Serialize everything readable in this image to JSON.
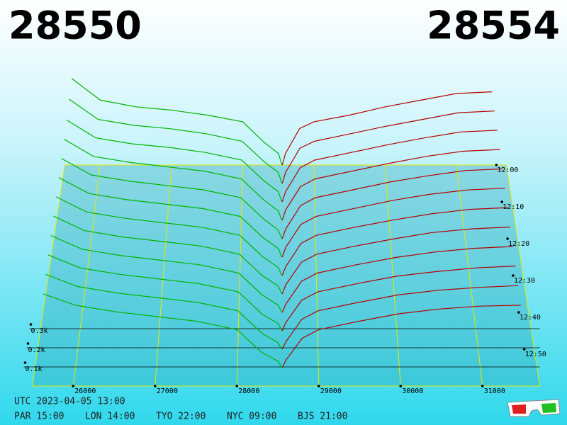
{
  "chart_data": {
    "type": "depth3d",
    "bid_price": 28550,
    "ask_price": 28554,
    "bid_color": "#00b400",
    "ask_color": "#b40000",
    "xlim": [
      25500,
      31700
    ],
    "xticks": [
      26000,
      27000,
      28000,
      29000,
      30000,
      31000
    ],
    "depth_ticks": [
      {
        "value": 100,
        "label": "0.1k"
      },
      {
        "value": 200,
        "label": "0.2k"
      },
      {
        "value": 300,
        "label": "0.3k"
      }
    ],
    "time_ticks": [
      "12:00",
      "12:10",
      "12:20",
      "12:30",
      "12:40",
      "12:50"
    ],
    "time_range": [
      "12:00",
      "13:00"
    ],
    "bid_prices": [
      25600,
      26000,
      26500,
      27000,
      27500,
      28000,
      28300,
      28500,
      28550
    ],
    "ask_prices": [
      28554,
      28600,
      28800,
      29000,
      29500,
      30000,
      30500,
      31000,
      31500
    ],
    "layers": [
      {
        "time": "12:00",
        "bids": [
          520,
          390,
          350,
          330,
          300,
          260,
          136,
          70,
          0
        ],
        "asks": [
          0,
          70,
          220,
          260,
          300,
          350,
          390,
          430,
          440
        ]
      },
      {
        "time": "12:05",
        "bids": [
          500,
          380,
          345,
          325,
          295,
          250,
          130,
          65,
          0
        ],
        "asks": [
          0,
          65,
          210,
          250,
          295,
          340,
          380,
          420,
          430
        ]
      },
      {
        "time": "12:10",
        "bids": [
          480,
          375,
          340,
          320,
          290,
          245,
          125,
          60,
          0
        ],
        "asks": [
          0,
          60,
          200,
          245,
          290,
          335,
          375,
          410,
          420
        ]
      },
      {
        "time": "12:15",
        "bids": [
          470,
          370,
          335,
          310,
          285,
          240,
          120,
          55,
          0
        ],
        "asks": [
          0,
          60,
          195,
          240,
          285,
          330,
          370,
          400,
          410
        ]
      },
      {
        "time": "12:20",
        "bids": [
          460,
          365,
          330,
          305,
          280,
          235,
          115,
          50,
          0
        ],
        "asks": [
          0,
          55,
          190,
          235,
          280,
          325,
          360,
          390,
          400
        ]
      },
      {
        "time": "12:25",
        "bids": [
          450,
          360,
          325,
          300,
          275,
          230,
          110,
          50,
          0
        ],
        "asks": [
          0,
          55,
          185,
          230,
          275,
          320,
          355,
          380,
          390
        ]
      },
      {
        "time": "12:30",
        "bids": [
          440,
          355,
          320,
          295,
          270,
          225,
          105,
          45,
          0
        ],
        "asks": [
          0,
          50,
          180,
          225,
          270,
          310,
          345,
          370,
          380
        ]
      },
      {
        "time": "12:35",
        "bids": [
          430,
          350,
          315,
          290,
          265,
          220,
          100,
          45,
          0
        ],
        "asks": [
          0,
          50,
          175,
          220,
          265,
          305,
          340,
          360,
          370
        ]
      },
      {
        "time": "12:40",
        "bids": [
          420,
          345,
          310,
          285,
          260,
          215,
          95,
          40,
          0
        ],
        "asks": [
          0,
          45,
          170,
          215,
          260,
          300,
          330,
          350,
          360
        ]
      },
      {
        "time": "12:45",
        "bids": [
          410,
          340,
          305,
          280,
          255,
          210,
          90,
          40,
          0
        ],
        "asks": [
          0,
          45,
          165,
          210,
          255,
          295,
          320,
          340,
          350
        ]
      },
      {
        "time": "12:50",
        "bids": [
          400,
          335,
          300,
          275,
          250,
          205,
          85,
          35,
          0
        ],
        "asks": [
          0,
          40,
          160,
          205,
          250,
          290,
          315,
          330,
          340
        ]
      },
      {
        "time": "12:55",
        "bids": [
          390,
          330,
          295,
          270,
          245,
          200,
          80,
          35,
          0
        ],
        "asks": [
          0,
          40,
          155,
          200,
          245,
          285,
          310,
          325,
          330
        ]
      }
    ]
  },
  "footer": {
    "utc": "UTC 2023-04-05 13:00",
    "cities": [
      "PAR 15:00",
      "LON 14:00",
      "TYO 22:00",
      "NYC 09:00",
      "BJS 21:00"
    ]
  }
}
